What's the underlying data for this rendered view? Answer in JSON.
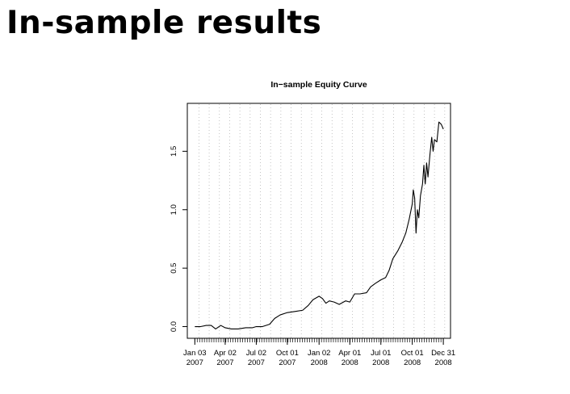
{
  "slide": {
    "title": "In-sample results"
  },
  "chart_data": {
    "type": "line",
    "title": "In−sample Equity Curve",
    "xlabel": "",
    "ylabel": "",
    "grid": true,
    "x_ticks": [
      {
        "date": "2007-01-03",
        "line1": "Jan 03",
        "line2": "2007"
      },
      {
        "date": "2007-04-02",
        "line1": "Apr 02",
        "line2": "2007"
      },
      {
        "date": "2007-07-02",
        "line1": "Jul 02",
        "line2": "2007"
      },
      {
        "date": "2007-10-01",
        "line1": "Oct 01",
        "line2": "2007"
      },
      {
        "date": "2008-01-02",
        "line1": "Jan 02",
        "line2": "2008"
      },
      {
        "date": "2008-04-01",
        "line1": "Apr 01",
        "line2": "2008"
      },
      {
        "date": "2008-07-01",
        "line1": "Jul 01",
        "line2": "2008"
      },
      {
        "date": "2008-10-01",
        "line1": "Oct 01",
        "line2": "2008"
      },
      {
        "date": "2008-12-31",
        "line1": "Dec 31",
        "line2": "2008"
      }
    ],
    "y_ticks": [
      "0.0",
      "0.5",
      "1.0",
      "1.5"
    ],
    "xlim": [
      "2006-12-12",
      "2009-01-21"
    ],
    "ylim": [
      -0.1,
      1.91
    ],
    "series": [
      {
        "color": "#000000",
        "points": [
          [
            "2007-01-03",
            0.0
          ],
          [
            "2007-01-20",
            0.0
          ],
          [
            "2007-02-05",
            0.01
          ],
          [
            "2007-02-20",
            0.01
          ],
          [
            "2007-03-05",
            -0.02
          ],
          [
            "2007-03-20",
            0.01
          ],
          [
            "2007-04-02",
            -0.01
          ],
          [
            "2007-04-20",
            -0.02
          ],
          [
            "2007-05-10",
            -0.02
          ],
          [
            "2007-06-01",
            -0.01
          ],
          [
            "2007-06-20",
            -0.01
          ],
          [
            "2007-07-02",
            0.0
          ],
          [
            "2007-07-20",
            0.0
          ],
          [
            "2007-08-10",
            0.02
          ],
          [
            "2007-08-25",
            0.07
          ],
          [
            "2007-09-10",
            0.1
          ],
          [
            "2007-10-01",
            0.12
          ],
          [
            "2007-10-25",
            0.13
          ],
          [
            "2007-11-15",
            0.14
          ],
          [
            "2007-12-01",
            0.18
          ],
          [
            "2007-12-15",
            0.23
          ],
          [
            "2008-01-02",
            0.26
          ],
          [
            "2008-01-12",
            0.24
          ],
          [
            "2008-01-22",
            0.2
          ],
          [
            "2008-02-01",
            0.22
          ],
          [
            "2008-02-15",
            0.21
          ],
          [
            "2008-03-01",
            0.19
          ],
          [
            "2008-03-20",
            0.22
          ],
          [
            "2008-04-01",
            0.21
          ],
          [
            "2008-04-15",
            0.28
          ],
          [
            "2008-05-01",
            0.28
          ],
          [
            "2008-05-20",
            0.29
          ],
          [
            "2008-06-01",
            0.34
          ],
          [
            "2008-06-15",
            0.37
          ],
          [
            "2008-07-01",
            0.4
          ],
          [
            "2008-07-15",
            0.42
          ],
          [
            "2008-07-25",
            0.48
          ],
          [
            "2008-08-05",
            0.58
          ],
          [
            "2008-08-20",
            0.65
          ],
          [
            "2008-09-01",
            0.72
          ],
          [
            "2008-09-12",
            0.8
          ],
          [
            "2008-09-22",
            0.92
          ],
          [
            "2008-10-01",
            1.05
          ],
          [
            "2008-10-04",
            1.17
          ],
          [
            "2008-10-08",
            1.1
          ],
          [
            "2008-10-12",
            0.8
          ],
          [
            "2008-10-16",
            1.0
          ],
          [
            "2008-10-20",
            0.93
          ],
          [
            "2008-10-25",
            1.12
          ],
          [
            "2008-10-31",
            1.22
          ],
          [
            "2008-11-04",
            1.38
          ],
          [
            "2008-11-08",
            1.22
          ],
          [
            "2008-11-12",
            1.4
          ],
          [
            "2008-11-16",
            1.28
          ],
          [
            "2008-11-22",
            1.48
          ],
          [
            "2008-11-27",
            1.62
          ],
          [
            "2008-12-01",
            1.5
          ],
          [
            "2008-12-05",
            1.6
          ],
          [
            "2008-12-12",
            1.58
          ],
          [
            "2008-12-18",
            1.75
          ],
          [
            "2008-12-25",
            1.73
          ],
          [
            "2008-12-31",
            1.69
          ]
        ]
      }
    ]
  }
}
